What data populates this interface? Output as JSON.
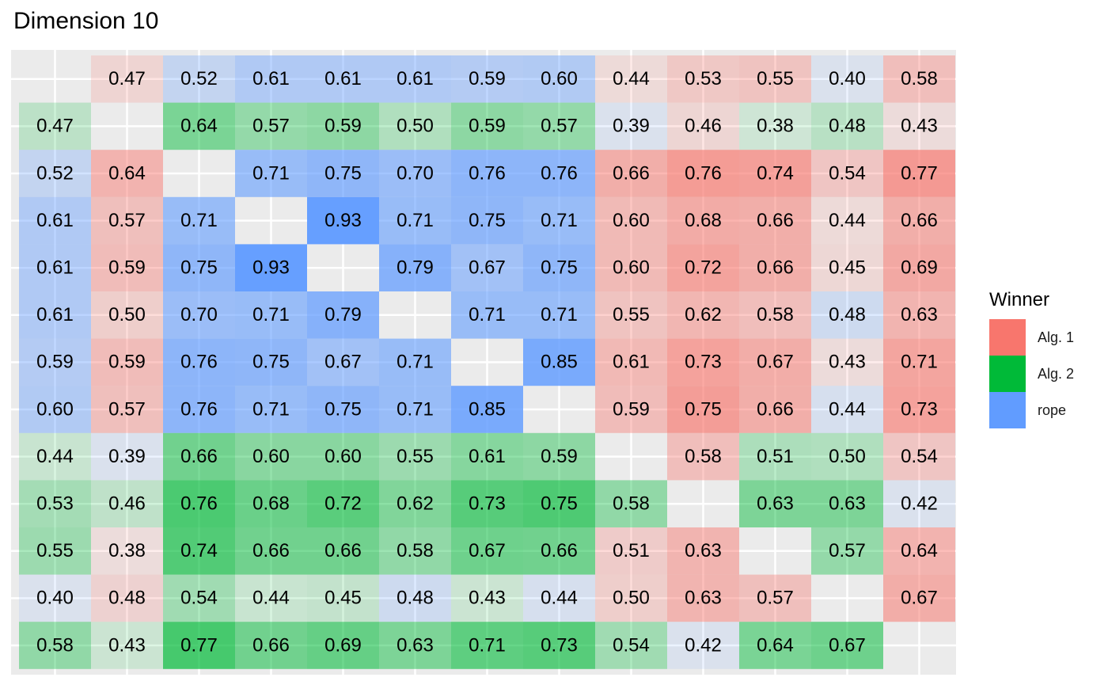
{
  "chart_data": {
    "type": "heatmap",
    "title": "Dimension 10",
    "rows": 13,
    "cols": 13,
    "values": [
      [
        null,
        0.47,
        0.52,
        0.61,
        0.61,
        0.61,
        0.59,
        0.6,
        0.44,
        0.53,
        0.55,
        0.4,
        0.58
      ],
      [
        0.47,
        null,
        0.64,
        0.57,
        0.59,
        0.5,
        0.59,
        0.57,
        0.39,
        0.46,
        0.38,
        0.48,
        0.43
      ],
      [
        0.52,
        0.64,
        null,
        0.71,
        0.75,
        0.7,
        0.76,
        0.76,
        0.66,
        0.76,
        0.74,
        0.54,
        0.77
      ],
      [
        0.61,
        0.57,
        0.71,
        null,
        0.93,
        0.71,
        0.75,
        0.71,
        0.6,
        0.68,
        0.66,
        0.44,
        0.66
      ],
      [
        0.61,
        0.59,
        0.75,
        0.93,
        null,
        0.79,
        0.67,
        0.75,
        0.6,
        0.72,
        0.66,
        0.45,
        0.69
      ],
      [
        0.61,
        0.5,
        0.7,
        0.71,
        0.79,
        null,
        0.71,
        0.71,
        0.55,
        0.62,
        0.58,
        0.48,
        0.63
      ],
      [
        0.59,
        0.59,
        0.76,
        0.75,
        0.67,
        0.71,
        null,
        0.85,
        0.61,
        0.73,
        0.67,
        0.43,
        0.71
      ],
      [
        0.6,
        0.57,
        0.76,
        0.71,
        0.75,
        0.71,
        0.85,
        null,
        0.59,
        0.75,
        0.66,
        0.44,
        0.73
      ],
      [
        0.44,
        0.39,
        0.66,
        0.6,
        0.6,
        0.55,
        0.61,
        0.59,
        null,
        0.58,
        0.51,
        0.5,
        0.54
      ],
      [
        0.53,
        0.46,
        0.76,
        0.68,
        0.72,
        0.62,
        0.73,
        0.75,
        0.58,
        null,
        0.63,
        0.63,
        0.42
      ],
      [
        0.55,
        0.38,
        0.74,
        0.66,
        0.66,
        0.58,
        0.67,
        0.66,
        0.51,
        0.63,
        null,
        0.57,
        0.64
      ],
      [
        0.4,
        0.48,
        0.54,
        0.44,
        0.45,
        0.48,
        0.43,
        0.44,
        0.5,
        0.63,
        0.57,
        null,
        0.67
      ],
      [
        0.58,
        0.43,
        0.77,
        0.66,
        0.69,
        0.63,
        0.71,
        0.73,
        0.54,
        0.42,
        0.64,
        0.67,
        null
      ]
    ],
    "winners": [
      [
        null,
        "Alg. 1",
        "rope",
        "rope",
        "rope",
        "rope",
        "rope",
        "rope",
        "Alg. 1",
        "Alg. 1",
        "Alg. 1",
        "rope",
        "Alg. 1"
      ],
      [
        "Alg. 2",
        null,
        "Alg. 2",
        "Alg. 2",
        "Alg. 2",
        "Alg. 2",
        "Alg. 2",
        "Alg. 2",
        "rope",
        "Alg. 1",
        "Alg. 2",
        "Alg. 2",
        "Alg. 1"
      ],
      [
        "rope",
        "Alg. 1",
        null,
        "rope",
        "rope",
        "rope",
        "rope",
        "rope",
        "Alg. 1",
        "Alg. 1",
        "Alg. 1",
        "Alg. 1",
        "Alg. 1"
      ],
      [
        "rope",
        "Alg. 1",
        "rope",
        null,
        "rope",
        "rope",
        "rope",
        "rope",
        "Alg. 1",
        "Alg. 1",
        "Alg. 1",
        "Alg. 1",
        "Alg. 1"
      ],
      [
        "rope",
        "Alg. 1",
        "rope",
        "rope",
        null,
        "rope",
        "rope",
        "rope",
        "Alg. 1",
        "Alg. 1",
        "Alg. 1",
        "Alg. 1",
        "Alg. 1"
      ],
      [
        "rope",
        "Alg. 1",
        "rope",
        "rope",
        "rope",
        null,
        "rope",
        "rope",
        "Alg. 1",
        "Alg. 1",
        "Alg. 1",
        "rope",
        "Alg. 1"
      ],
      [
        "rope",
        "Alg. 1",
        "rope",
        "rope",
        "rope",
        "rope",
        null,
        "rope",
        "Alg. 1",
        "Alg. 1",
        "Alg. 1",
        "Alg. 1",
        "Alg. 1"
      ],
      [
        "rope",
        "Alg. 1",
        "rope",
        "rope",
        "rope",
        "rope",
        "rope",
        null,
        "Alg. 1",
        "Alg. 1",
        "Alg. 1",
        "rope",
        "Alg. 1"
      ],
      [
        "Alg. 2",
        "rope",
        "Alg. 2",
        "Alg. 2",
        "Alg. 2",
        "Alg. 2",
        "Alg. 2",
        "Alg. 2",
        null,
        "Alg. 1",
        "Alg. 2",
        "Alg. 2",
        "Alg. 1"
      ],
      [
        "Alg. 2",
        "Alg. 2",
        "Alg. 2",
        "Alg. 2",
        "Alg. 2",
        "Alg. 2",
        "Alg. 2",
        "Alg. 2",
        "Alg. 2",
        null,
        "Alg. 2",
        "Alg. 2",
        "rope"
      ],
      [
        "Alg. 2",
        "Alg. 1",
        "Alg. 2",
        "Alg. 2",
        "Alg. 2",
        "Alg. 2",
        "Alg. 2",
        "Alg. 2",
        "Alg. 1",
        "Alg. 1",
        null,
        "Alg. 2",
        "Alg. 1"
      ],
      [
        "rope",
        "Alg. 1",
        "Alg. 2",
        "Alg. 2",
        "Alg. 2",
        "rope",
        "Alg. 2",
        "rope",
        "Alg. 1",
        "Alg. 1",
        "Alg. 1",
        null,
        "Alg. 1"
      ],
      [
        "Alg. 2",
        "Alg. 2",
        "Alg. 2",
        "Alg. 2",
        "Alg. 2",
        "Alg. 2",
        "Alg. 2",
        "Alg. 2",
        "Alg. 2",
        "rope",
        "Alg. 2",
        "Alg. 2",
        null
      ]
    ],
    "grid": true,
    "legend": {
      "title": "Winner",
      "position": "right",
      "items": [
        {
          "label": "Alg. 1",
          "color": "#F8766D"
        },
        {
          "label": "Alg. 2",
          "color": "#00BA38"
        },
        {
          "label": "rope",
          "color": "#619CFF"
        }
      ]
    },
    "colors": {
      "panel_background": "#EBEBEB",
      "grid_line": "#FFFFFF",
      "text": "#000000"
    }
  }
}
